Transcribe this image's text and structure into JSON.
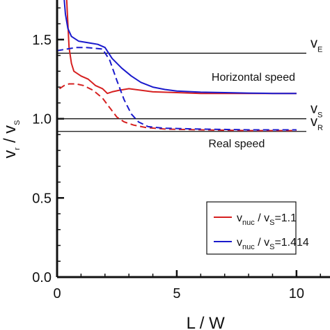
{
  "chart_data": {
    "type": "line",
    "xlabel": "L / W",
    "ylabel": {
      "main": "v",
      "sub1": "r",
      "mid": " / v",
      "sub2": "S"
    },
    "xlim": [
      0,
      11.4
    ],
    "ylim": [
      0,
      1.75
    ],
    "xticks": [
      0,
      5,
      10
    ],
    "xtick_labels": [
      "0",
      "5",
      "10"
    ],
    "yticks": [
      0,
      0.5,
      1.0,
      1.5
    ],
    "ytick_labels": [
      "0.0",
      "0.5",
      "1.0",
      "1.5"
    ],
    "grid": false,
    "legend_position": "bottom-right",
    "reference_lines": [
      {
        "y": 1.414,
        "label": "v",
        "sub": "E"
      },
      {
        "y": 1.0,
        "label": "v",
        "sub": "S"
      },
      {
        "y": 0.92,
        "label": "v",
        "sub": "R"
      }
    ],
    "annotations": [
      {
        "text": "Horizontal speed",
        "x": 8.2,
        "y": 1.24
      },
      {
        "text": "Real speed",
        "x": 7.5,
        "y": 0.82
      }
    ],
    "series": [
      {
        "name": "v_nuc / v_S=1.1",
        "legend": {
          "main": "v",
          "sub1": "nuc",
          "mid": " / v",
          "sub2": "S",
          "rest": "=1.1"
        },
        "color": "#d62020",
        "style": "solid",
        "points": [
          [
            0.4,
            1.75
          ],
          [
            0.45,
            1.6
          ],
          [
            0.5,
            1.45
          ],
          [
            0.6,
            1.35
          ],
          [
            0.7,
            1.3
          ],
          [
            1.0,
            1.27
          ],
          [
            1.3,
            1.25
          ],
          [
            1.6,
            1.21
          ],
          [
            1.9,
            1.19
          ],
          [
            2.1,
            1.16
          ],
          [
            2.3,
            1.17
          ],
          [
            2.6,
            1.18
          ],
          [
            3.0,
            1.19
          ],
          [
            3.5,
            1.18
          ],
          [
            4.0,
            1.17
          ],
          [
            5.0,
            1.165
          ],
          [
            6.0,
            1.16
          ],
          [
            7.0,
            1.16
          ],
          [
            8.0,
            1.16
          ],
          [
            9.0,
            1.16
          ],
          [
            10.0,
            1.16
          ]
        ]
      },
      {
        "name": "v_nuc / v_S=1.1 (real)",
        "color": "#d62020",
        "style": "dashed",
        "points": [
          [
            0.1,
            1.19
          ],
          [
            0.3,
            1.21
          ],
          [
            0.5,
            1.22
          ],
          [
            0.8,
            1.22
          ],
          [
            1.1,
            1.21
          ],
          [
            1.5,
            1.18
          ],
          [
            1.9,
            1.13
          ],
          [
            2.2,
            1.07
          ],
          [
            2.5,
            1.01
          ],
          [
            2.8,
            0.98
          ],
          [
            3.2,
            0.96
          ],
          [
            3.7,
            0.945
          ],
          [
            4.5,
            0.935
          ],
          [
            6.0,
            0.93
          ],
          [
            8.0,
            0.925
          ],
          [
            10.0,
            0.925
          ]
        ]
      },
      {
        "name": "v_nuc / v_S=1.414",
        "legend": {
          "main": "v",
          "sub1": "nuc",
          "mid": " / v",
          "sub2": "S",
          "rest": "=1.414"
        },
        "color": "#1a1acc",
        "style": "solid",
        "points": [
          [
            0.3,
            1.75
          ],
          [
            0.35,
            1.66
          ],
          [
            0.45,
            1.57
          ],
          [
            0.6,
            1.52
          ],
          [
            0.9,
            1.49
          ],
          [
            1.3,
            1.48
          ],
          [
            1.7,
            1.47
          ],
          [
            2.0,
            1.45
          ],
          [
            2.3,
            1.38
          ],
          [
            2.7,
            1.32
          ],
          [
            3.1,
            1.27
          ],
          [
            3.5,
            1.23
          ],
          [
            4.0,
            1.2
          ],
          [
            4.5,
            1.185
          ],
          [
            5.0,
            1.175
          ],
          [
            6.0,
            1.168
          ],
          [
            7.0,
            1.165
          ],
          [
            8.0,
            1.162
          ],
          [
            9.0,
            1.16
          ],
          [
            10.0,
            1.16
          ]
        ]
      },
      {
        "name": "v_nuc / v_S=1.414 (real)",
        "color": "#1a1acc",
        "style": "dashed",
        "points": [
          [
            0.0,
            1.43
          ],
          [
            0.4,
            1.44
          ],
          [
            0.8,
            1.45
          ],
          [
            1.2,
            1.45
          ],
          [
            1.6,
            1.445
          ],
          [
            1.9,
            1.44
          ],
          [
            2.2,
            1.37
          ],
          [
            2.5,
            1.24
          ],
          [
            2.8,
            1.12
          ],
          [
            3.1,
            1.03
          ],
          [
            3.4,
            0.98
          ],
          [
            3.8,
            0.95
          ],
          [
            4.5,
            0.94
          ],
          [
            6.0,
            0.935
          ],
          [
            8.0,
            0.93
          ],
          [
            10.0,
            0.93
          ]
        ]
      }
    ]
  }
}
